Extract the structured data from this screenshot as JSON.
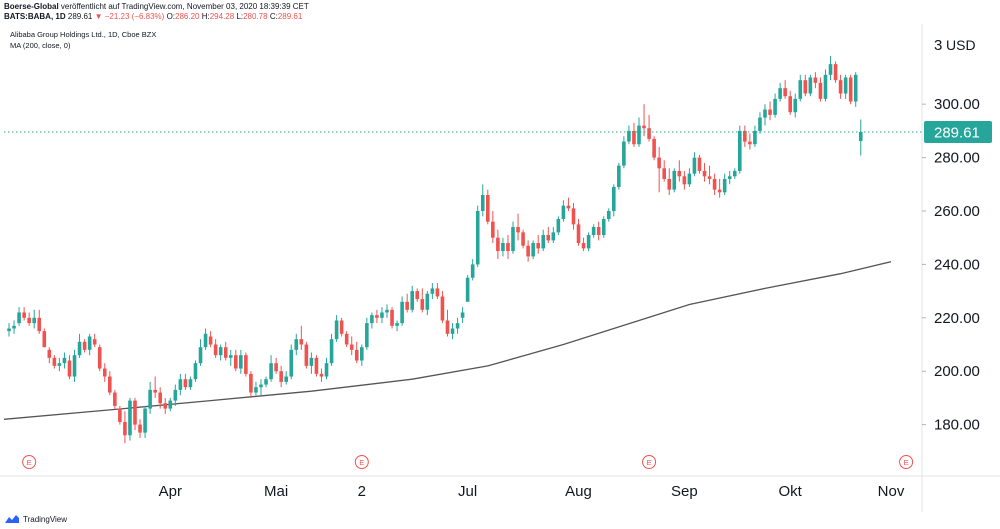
{
  "header": {
    "publisher": "Boerse-Global",
    "published_text": "veröffentlicht auf TradingView.com, November 03, 2020 18:39:39 CET",
    "symbol": "BATS:BABA, 1D",
    "last": "289.61",
    "change": "−21.23 (−6.83%)",
    "o_label": "O:",
    "o_value": "286.20",
    "h_label": "H:",
    "h_value": "294.28",
    "l_label": "L:",
    "l_value": "280.78",
    "c_label": "C:",
    "c_value": "289.61"
  },
  "legend": {
    "instrument": "Alibaba Group Holdings Ltd., 1D, Cboe BZX",
    "indicator": "MA (200, close, 0)"
  },
  "price_axis": {
    "currency": "USD",
    "top_partial": "3",
    "last_price_label": "289.61"
  },
  "event_marker_label": "E",
  "footer": {
    "brand": "TradingView"
  },
  "colors": {
    "up": "#26a69a",
    "down": "#ef5350",
    "ma": "#555555",
    "last_price": "#26a69a",
    "grid": "none"
  },
  "chart_data": {
    "type": "candlestick",
    "ylim": [
      160,
      330
    ],
    "y_ticks": [
      180,
      200,
      220,
      240,
      260,
      280,
      300
    ],
    "y_tick_labels": [
      "180.00",
      "200.00",
      "220.00",
      "240.00",
      "260.00",
      "280.00",
      "300.00"
    ],
    "x_tick_labels": [
      "Apr",
      "Mai",
      "2",
      "Jul",
      "Aug",
      "Sep",
      "Okt",
      "Nov"
    ],
    "x_tick_index": [
      32,
      53,
      70,
      91,
      113,
      134,
      155,
      175
    ],
    "last_price": 289.61,
    "earnings_markers_index": [
      4,
      70,
      127,
      178
    ],
    "ma200": {
      "name": "MA (200, close, 0)",
      "index": [
        0,
        20,
        40,
        60,
        80,
        95,
        110,
        125,
        135,
        150,
        165,
        175
      ],
      "values": [
        182,
        185.5,
        189,
        192.5,
        197,
        202,
        210,
        219,
        225,
        231,
        236.5,
        241
      ]
    },
    "candles": [
      [
        0,
        215,
        218,
        213,
        216
      ],
      [
        1,
        216,
        219,
        214,
        217
      ],
      [
        2,
        218,
        224,
        217,
        222
      ],
      [
        3,
        222,
        224,
        219,
        220
      ],
      [
        4,
        220,
        222,
        217,
        218
      ],
      [
        5,
        218,
        223,
        216,
        220
      ],
      [
        6,
        220,
        223,
        214,
        215
      ],
      [
        7,
        215,
        216,
        209,
        209
      ],
      [
        8,
        208,
        209,
        203,
        205
      ],
      [
        9,
        205,
        206,
        201,
        202
      ],
      [
        10,
        202,
        205,
        200,
        203
      ],
      [
        11,
        203,
        207,
        201,
        205
      ],
      [
        12,
        204,
        206,
        197,
        198
      ],
      [
        13,
        198,
        208,
        196,
        206
      ],
      [
        14,
        206,
        214,
        205,
        211
      ],
      [
        15,
        211,
        212,
        207,
        208
      ],
      [
        16,
        208,
        214,
        206,
        213
      ],
      [
        17,
        212,
        214,
        209,
        210
      ],
      [
        18,
        209,
        210,
        200,
        201
      ],
      [
        19,
        201,
        203,
        196,
        198
      ],
      [
        20,
        198,
        200,
        191,
        192
      ],
      [
        21,
        192,
        193,
        186,
        187
      ],
      [
        22,
        186,
        187,
        180,
        181
      ],
      [
        23,
        181,
        185,
        173,
        176
      ],
      [
        24,
        176,
        190,
        174,
        189
      ],
      [
        25,
        189,
        190,
        178,
        180
      ],
      [
        26,
        180,
        182,
        175,
        177
      ],
      [
        27,
        177,
        187,
        175,
        186
      ],
      [
        28,
        186,
        196,
        184,
        193
      ],
      [
        29,
        193,
        198,
        190,
        192
      ],
      [
        30,
        192,
        194,
        186,
        188
      ],
      [
        31,
        188,
        190,
        184,
        186
      ],
      [
        32,
        186,
        190,
        185,
        189
      ],
      [
        33,
        189,
        195,
        187,
        193
      ],
      [
        34,
        193,
        199,
        191,
        197
      ],
      [
        35,
        197,
        199,
        193,
        194
      ],
      [
        36,
        194,
        198,
        193,
        197
      ],
      [
        37,
        197,
        204,
        196,
        203
      ],
      [
        38,
        203,
        212,
        202,
        209
      ],
      [
        39,
        209,
        216,
        208,
        214
      ],
      [
        40,
        213,
        215,
        209,
        210
      ],
      [
        41,
        210,
        212,
        205,
        206
      ],
      [
        42,
        206,
        210,
        204,
        209
      ],
      [
        43,
        209,
        211,
        204,
        205
      ],
      [
        44,
        205,
        208,
        202,
        206
      ],
      [
        45,
        206,
        208,
        200,
        201
      ],
      [
        46,
        201,
        208,
        199,
        206
      ],
      [
        47,
        206,
        207,
        198,
        199
      ],
      [
        48,
        199,
        200,
        190,
        192
      ],
      [
        49,
        192,
        196,
        191,
        194
      ],
      [
        50,
        194,
        197,
        191,
        195
      ],
      [
        51,
        195,
        198,
        194,
        197
      ],
      [
        52,
        197,
        206,
        196,
        203
      ],
      [
        53,
        203,
        205,
        199,
        200
      ],
      [
        54,
        200,
        202,
        194,
        196
      ],
      [
        55,
        196,
        200,
        195,
        198
      ],
      [
        56,
        198,
        210,
        197,
        208
      ],
      [
        57,
        208,
        214,
        206,
        212
      ],
      [
        58,
        212,
        217,
        208,
        210
      ],
      [
        59,
        210,
        211,
        201,
        202
      ],
      [
        60,
        202,
        207,
        199,
        205
      ],
      [
        61,
        205,
        206,
        198,
        199
      ],
      [
        62,
        199,
        201,
        196,
        198
      ],
      [
        63,
        198,
        205,
        197,
        203
      ],
      [
        64,
        203,
        214,
        202,
        212
      ],
      [
        65,
        212,
        221,
        211,
        219
      ],
      [
        66,
        219,
        220,
        213,
        214
      ],
      [
        67,
        214,
        215,
        209,
        210
      ],
      [
        68,
        210,
        213,
        206,
        208
      ],
      [
        69,
        208,
        211,
        203,
        204
      ],
      [
        70,
        204,
        210,
        202,
        209
      ],
      [
        71,
        209,
        220,
        208,
        218
      ],
      [
        72,
        218,
        222,
        216,
        221
      ],
      [
        73,
        221,
        223,
        218,
        220
      ],
      [
        74,
        220,
        224,
        218,
        222
      ],
      [
        75,
        222,
        225,
        220,
        223
      ],
      [
        76,
        223,
        224,
        216,
        217
      ],
      [
        77,
        217,
        219,
        215,
        218
      ],
      [
        78,
        218,
        228,
        217,
        226
      ],
      [
        79,
        226,
        229,
        222,
        223
      ],
      [
        80,
        223,
        232,
        222,
        230
      ],
      [
        81,
        230,
        231,
        226,
        227
      ],
      [
        82,
        227,
        231,
        222,
        223
      ],
      [
        83,
        223,
        230,
        221,
        229
      ],
      [
        84,
        229,
        233,
        227,
        231
      ],
      [
        85,
        231,
        233,
        227,
        228
      ],
      [
        86,
        228,
        230,
        218,
        219
      ],
      [
        87,
        219,
        223,
        213,
        214
      ],
      [
        88,
        214,
        218,
        212,
        216
      ],
      [
        89,
        216,
        220,
        214,
        218
      ],
      [
        90,
        220,
        224,
        218,
        222
      ],
      [
        91,
        226,
        236,
        226,
        235
      ],
      [
        92,
        235,
        242,
        234,
        240
      ],
      [
        93,
        240,
        262,
        239,
        260
      ],
      [
        94,
        260,
        270,
        258,
        266
      ],
      [
        95,
        266,
        268,
        255,
        256
      ],
      [
        96,
        256,
        260,
        248,
        250
      ],
      [
        97,
        250,
        253,
        242,
        245
      ],
      [
        98,
        245,
        250,
        243,
        248
      ],
      [
        99,
        248,
        251,
        242,
        245
      ],
      [
        100,
        245,
        256,
        244,
        254
      ],
      [
        101,
        254,
        259,
        249,
        252
      ],
      [
        102,
        252,
        253,
        246,
        247
      ],
      [
        103,
        247,
        249,
        241,
        243
      ],
      [
        104,
        243,
        249,
        242,
        248
      ],
      [
        105,
        248,
        251,
        244,
        246
      ],
      [
        106,
        246,
        253,
        245,
        251
      ],
      [
        107,
        251,
        254,
        248,
        249
      ],
      [
        108,
        249,
        254,
        248,
        252
      ],
      [
        109,
        252,
        258,
        251,
        257
      ],
      [
        110,
        257,
        264,
        256,
        262
      ],
      [
        111,
        262,
        265,
        260,
        261
      ],
      [
        112,
        261,
        263,
        253,
        255
      ],
      [
        113,
        255,
        257,
        247,
        248
      ],
      [
        114,
        248,
        250,
        245,
        246
      ],
      [
        115,
        246,
        252,
        245,
        251
      ],
      [
        116,
        251,
        255,
        250,
        254
      ],
      [
        117,
        254,
        256,
        249,
        251
      ],
      [
        118,
        251,
        258,
        250,
        257
      ],
      [
        119,
        257,
        261,
        256,
        260
      ],
      [
        120,
        260,
        270,
        258,
        269
      ],
      [
        121,
        269,
        278,
        268,
        277
      ],
      [
        122,
        277,
        288,
        276,
        286
      ],
      [
        123,
        286,
        292,
        285,
        290
      ],
      [
        124,
        290,
        293,
        284,
        285
      ],
      [
        125,
        285,
        295,
        284,
        292
      ],
      [
        126,
        292,
        300,
        288,
        291
      ],
      [
        127,
        291,
        296,
        286,
        287
      ],
      [
        128,
        287,
        288,
        279,
        280
      ],
      [
        129,
        280,
        284,
        267,
        276
      ],
      [
        130,
        276,
        279,
        271,
        272
      ],
      [
        131,
        272,
        276,
        266,
        268
      ],
      [
        132,
        268,
        276,
        267,
        275
      ],
      [
        133,
        275,
        279,
        271,
        273
      ],
      [
        134,
        273,
        275,
        268,
        270
      ],
      [
        135,
        270,
        276,
        269,
        274
      ],
      [
        136,
        274,
        282,
        273,
        280
      ],
      [
        137,
        280,
        281,
        274,
        275
      ],
      [
        138,
        275,
        278,
        271,
        273
      ],
      [
        139,
        273,
        277,
        270,
        272
      ],
      [
        140,
        272,
        274,
        266,
        268
      ],
      [
        141,
        268,
        272,
        265,
        267
      ],
      [
        142,
        267,
        274,
        266,
        272
      ],
      [
        143,
        272,
        275,
        270,
        273
      ],
      [
        144,
        273,
        276,
        272,
        275
      ],
      [
        145,
        275,
        292,
        274,
        290
      ],
      [
        146,
        290,
        292,
        284,
        286
      ],
      [
        147,
        286,
        289,
        283,
        285
      ],
      [
        148,
        285,
        292,
        284,
        290
      ],
      [
        149,
        290,
        297,
        289,
        295
      ],
      [
        150,
        295,
        300,
        292,
        298
      ],
      [
        151,
        298,
        301,
        294,
        296
      ],
      [
        152,
        296,
        304,
        295,
        302
      ],
      [
        153,
        302,
        308,
        301,
        306
      ],
      [
        154,
        306,
        309,
        302,
        303
      ],
      [
        155,
        303,
        305,
        296,
        297
      ],
      [
        156,
        297,
        304,
        295,
        302
      ],
      [
        157,
        302,
        311,
        301,
        309
      ],
      [
        158,
        309,
        311,
        303,
        304
      ],
      [
        159,
        304,
        311,
        303,
        310
      ],
      [
        160,
        310,
        312,
        306,
        308
      ],
      [
        161,
        308,
        310,
        301,
        302
      ],
      [
        162,
        302,
        313,
        301,
        311
      ],
      [
        163,
        311,
        318,
        309,
        315
      ],
      [
        164,
        315,
        316,
        308,
        309
      ],
      [
        165,
        309,
        311,
        302,
        304
      ],
      [
        166,
        304,
        311,
        302,
        310
      ],
      [
        167,
        310,
        311,
        300,
        301
      ],
      [
        168,
        301,
        312,
        299,
        311
      ],
      [
        169,
        286.2,
        294.28,
        280.78,
        289.61
      ]
    ]
  }
}
